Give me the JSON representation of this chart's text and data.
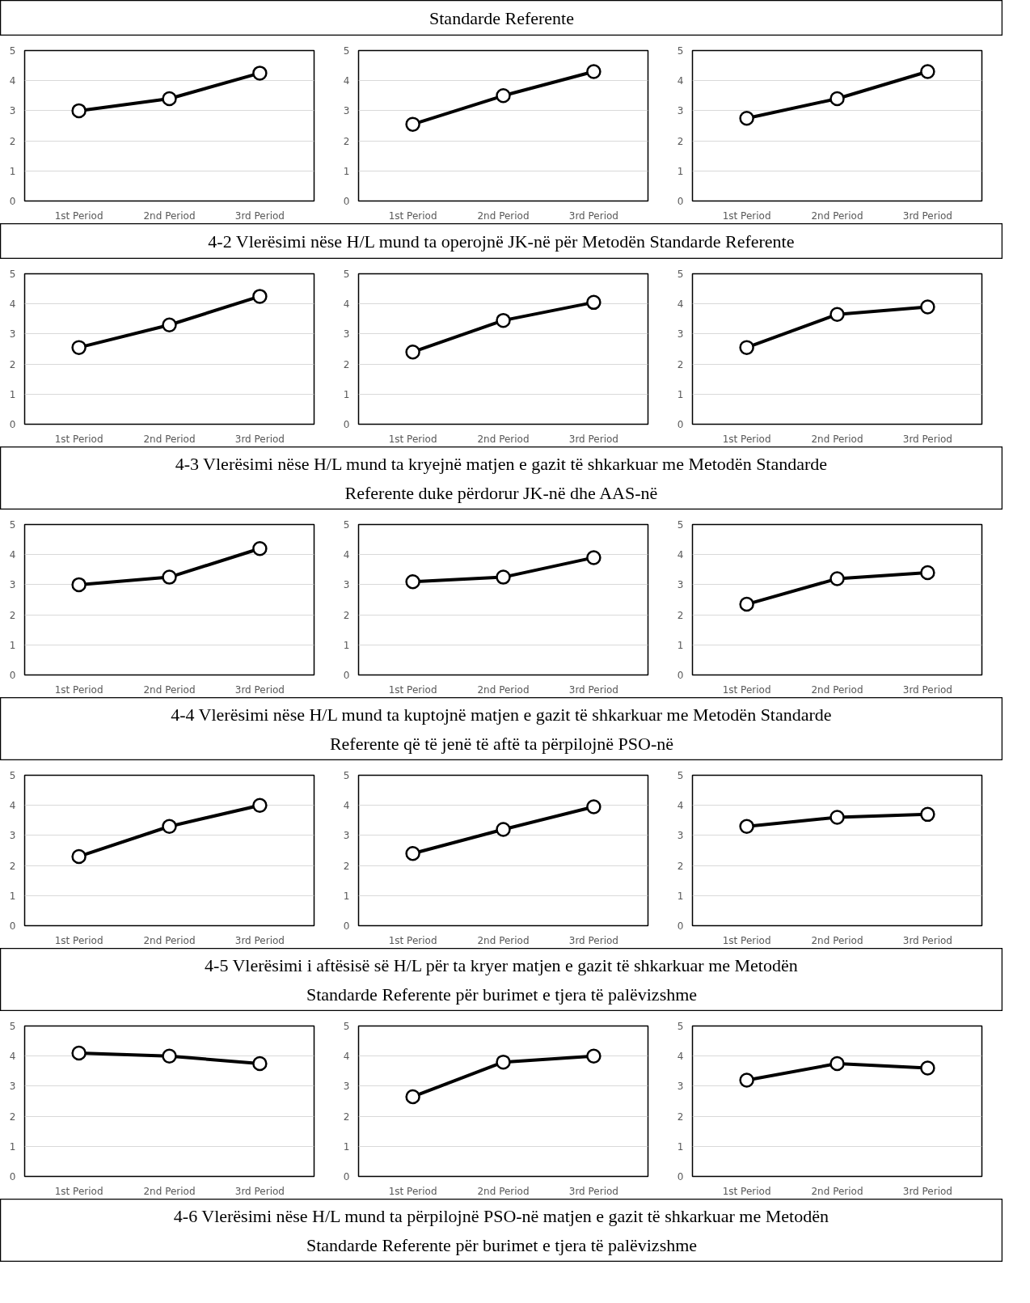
{
  "chart_data": [
    {
      "type": "other",
      "title": "Standarde Referente"
    },
    {
      "type": "line",
      "categories": [
        "1st Period",
        "2nd Period",
        "3rd Period"
      ],
      "values": [
        3.0,
        3.4,
        4.25
      ],
      "color": "#000000",
      "ylim": [
        0,
        5
      ],
      "yticks": [
        0,
        1,
        2,
        3,
        4,
        5
      ],
      "grid": "y",
      "marker": "circle"
    },
    {
      "type": "line",
      "categories": [
        "1st Period",
        "2nd Period",
        "3rd Period"
      ],
      "values": [
        2.55,
        3.5,
        4.3
      ],
      "color": "#000000",
      "ylim": [
        0,
        5
      ],
      "yticks": [
        0,
        1,
        2,
        3,
        4,
        5
      ],
      "grid": "y",
      "marker": "circle"
    },
    {
      "type": "line",
      "categories": [
        "1st Period",
        "2nd Period",
        "3rd Period"
      ],
      "values": [
        2.75,
        3.4,
        4.3
      ],
      "color": "#000000",
      "ylim": [
        0,
        5
      ],
      "yticks": [
        0,
        1,
        2,
        3,
        4,
        5
      ],
      "grid": "y",
      "marker": "circle"
    },
    {
      "type": "other",
      "title": "4-2 Vlerësimi nëse H/L mund ta operojnë JK-në për Metodën Standarde Referente"
    },
    {
      "type": "line",
      "categories": [
        "1st Period",
        "2nd Period",
        "3rd Period"
      ],
      "values": [
        2.55,
        3.3,
        4.25
      ],
      "color": "#000000",
      "ylim": [
        0,
        5
      ],
      "yticks": [
        0,
        1,
        2,
        3,
        4,
        5
      ],
      "grid": "y",
      "marker": "circle"
    },
    {
      "type": "line",
      "categories": [
        "1st Period",
        "2nd Period",
        "3rd Period"
      ],
      "values": [
        2.4,
        3.45,
        4.05
      ],
      "color": "#000000",
      "ylim": [
        0,
        5
      ],
      "yticks": [
        0,
        1,
        2,
        3,
        4,
        5
      ],
      "grid": "y",
      "marker": "circle"
    },
    {
      "type": "line",
      "categories": [
        "1st Period",
        "2nd Period",
        "3rd Period"
      ],
      "values": [
        2.55,
        3.65,
        3.9
      ],
      "color": "#000000",
      "ylim": [
        0,
        5
      ],
      "yticks": [
        0,
        1,
        2,
        3,
        4,
        5
      ],
      "grid": "y",
      "marker": "circle"
    },
    {
      "type": "other",
      "title": "4-3 Vlerësimi nëse H/L mund ta kryejnë matjen e gazit të shkarkuar me Metodën Standarde Referente duke përdorur JK-në dhe AAS-në"
    },
    {
      "type": "line",
      "categories": [
        "1st Period",
        "2nd Period",
        "3rd Period"
      ],
      "values": [
        3.0,
        3.25,
        4.2
      ],
      "color": "#000000",
      "ylim": [
        0,
        5
      ],
      "yticks": [
        0,
        1,
        2,
        3,
        4,
        5
      ],
      "grid": "y",
      "marker": "circle"
    },
    {
      "type": "line",
      "categories": [
        "1st Period",
        "2nd Period",
        "3rd Period"
      ],
      "values": [
        3.1,
        3.25,
        3.9
      ],
      "color": "#000000",
      "ylim": [
        0,
        5
      ],
      "yticks": [
        0,
        1,
        2,
        3,
        4,
        5
      ],
      "grid": "y",
      "marker": "circle"
    },
    {
      "type": "line",
      "categories": [
        "1st Period",
        "2nd Period",
        "3rd Period"
      ],
      "values": [
        2.35,
        3.2,
        3.4
      ],
      "color": "#000000",
      "ylim": [
        0,
        5
      ],
      "yticks": [
        0,
        1,
        2,
        3,
        4,
        5
      ],
      "grid": "y",
      "marker": "circle"
    },
    {
      "type": "other",
      "title": "4-4 Vlerësimi nëse H/L mund ta kuptojnë matjen e gazit të shkarkuar me Metodën Standarde Referente që të jenë të aftë ta përpilojnë PSO-në"
    },
    {
      "type": "line",
      "categories": [
        "1st Period",
        "2nd Period",
        "3rd Period"
      ],
      "values": [
        2.3,
        3.3,
        4.0
      ],
      "color": "#000000",
      "ylim": [
        0,
        5
      ],
      "yticks": [
        0,
        1,
        2,
        3,
        4,
        5
      ],
      "grid": "y",
      "marker": "circle"
    },
    {
      "type": "line",
      "categories": [
        "1st Period",
        "2nd Period",
        "3rd Period"
      ],
      "values": [
        2.4,
        3.2,
        3.95
      ],
      "color": "#000000",
      "ylim": [
        0,
        5
      ],
      "yticks": [
        0,
        1,
        2,
        3,
        4,
        5
      ],
      "grid": "y",
      "marker": "circle"
    },
    {
      "type": "line",
      "categories": [
        "1st Period",
        "2nd Period",
        "3rd Period"
      ],
      "values": [
        3.3,
        3.6,
        3.7
      ],
      "color": "#000000",
      "ylim": [
        0,
        5
      ],
      "yticks": [
        0,
        1,
        2,
        3,
        4,
        5
      ],
      "grid": "y",
      "marker": "circle"
    },
    {
      "type": "other",
      "title": "4-5 Vlerësimi i aftësisë së H/L për ta kryer matjen e gazit të shkarkuar me Metodën Standarde Referente për burimet e tjera të palëvizshme"
    },
    {
      "type": "line",
      "categories": [
        "1st Period",
        "2nd Period",
        "3rd Period"
      ],
      "values": [
        4.1,
        4.0,
        3.75
      ],
      "color": "#000000",
      "ylim": [
        0,
        5
      ],
      "yticks": [
        0,
        1,
        2,
        3,
        4,
        5
      ],
      "grid": "y",
      "marker": "circle"
    },
    {
      "type": "line",
      "categories": [
        "1st Period",
        "2nd Period",
        "3rd Period"
      ],
      "values": [
        2.65,
        3.8,
        4.0
      ],
      "color": "#000000",
      "ylim": [
        0,
        5
      ],
      "yticks": [
        0,
        1,
        2,
        3,
        4,
        5
      ],
      "grid": "y",
      "marker": "circle"
    },
    {
      "type": "line",
      "categories": [
        "1st Period",
        "2nd Period",
        "3rd Period"
      ],
      "values": [
        3.2,
        3.75,
        3.6
      ],
      "color": "#000000",
      "ylim": [
        0,
        5
      ],
      "yticks": [
        0,
        1,
        2,
        3,
        4,
        5
      ],
      "grid": "y",
      "marker": "circle"
    },
    {
      "type": "other",
      "title": "4-6 Vlerësimi nëse H/L mund ta përpilojnë PSO-në matjen e gazit të shkarkuar me Metodën Standarde Referente për burimet e tjera të palëvizshme"
    }
  ]
}
